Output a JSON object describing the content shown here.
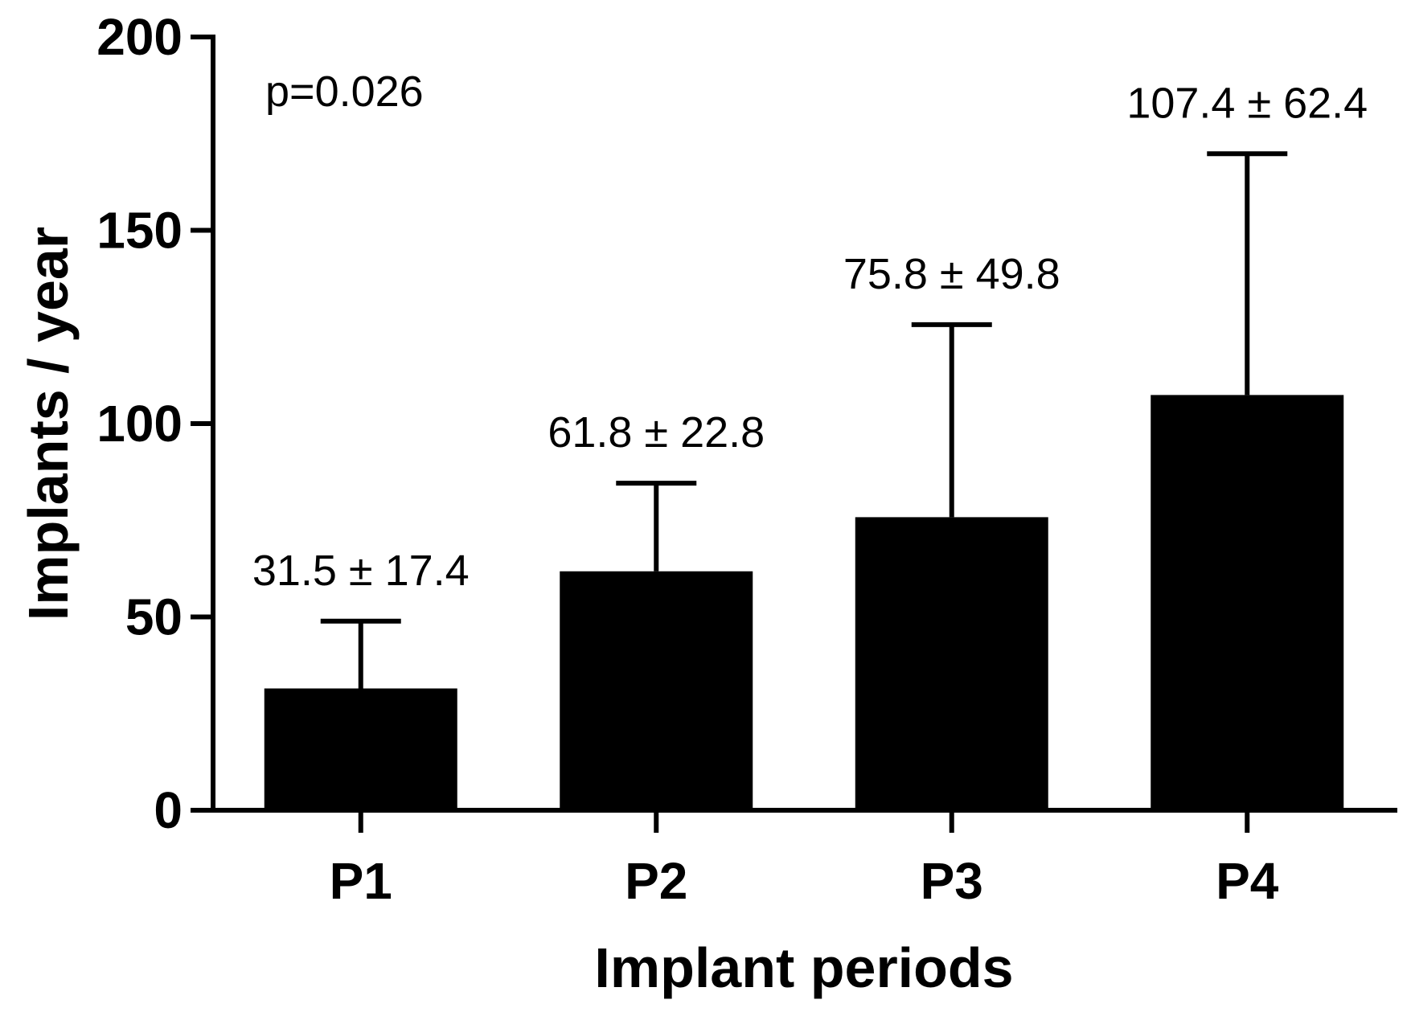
{
  "chart_data": {
    "type": "bar",
    "title": "",
    "xlabel": "Implant periods",
    "ylabel": "Implants / year",
    "ylim": [
      0,
      200
    ],
    "yticks": [
      0,
      50,
      100,
      150,
      200
    ],
    "categories": [
      "P1",
      "P2",
      "P3",
      "P4"
    ],
    "values": [
      31.5,
      61.8,
      75.8,
      107.4
    ],
    "errors": [
      17.4,
      22.8,
      49.8,
      62.4
    ],
    "data_labels": [
      "31.5 ± 17.4",
      "61.8 ± 22.8",
      "75.8 ± 49.8",
      "107.4 ± 62.4"
    ],
    "annotation": "p=0.026",
    "bar_color": "#000000",
    "grid": false
  }
}
